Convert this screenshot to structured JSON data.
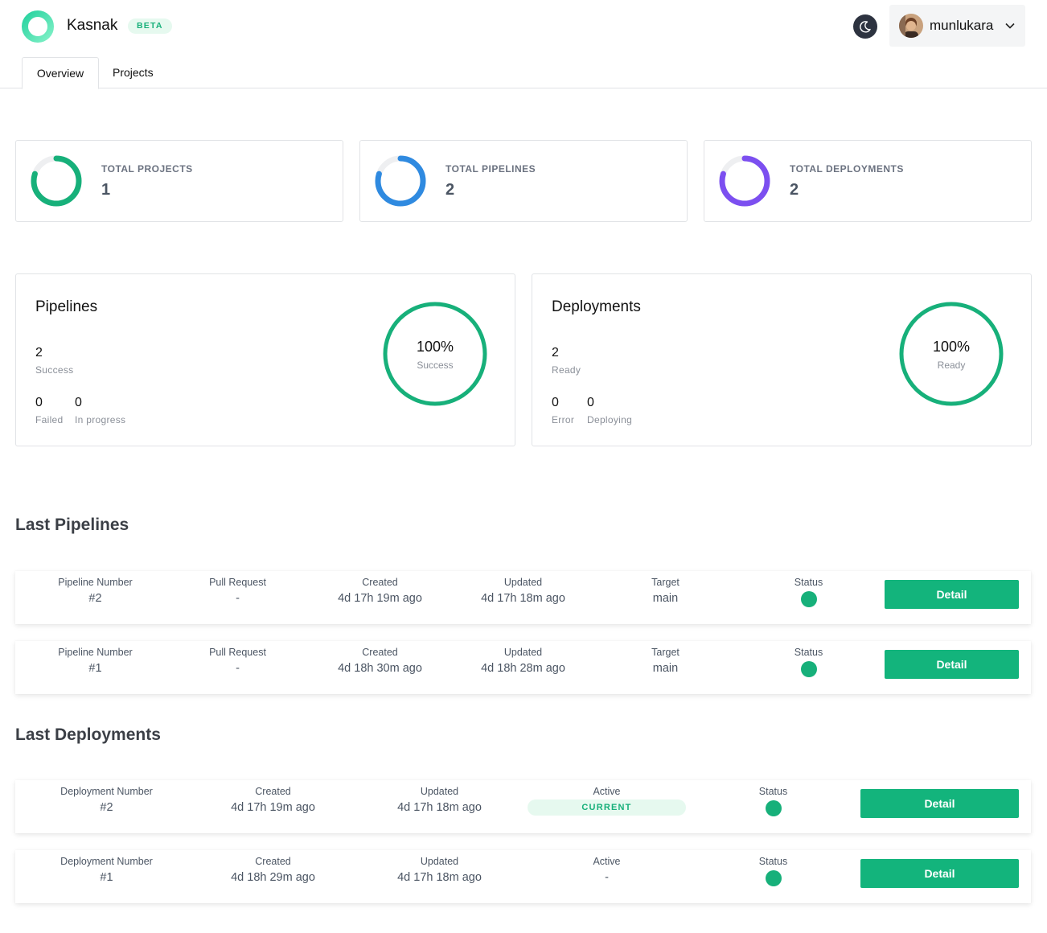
{
  "app": {
    "name": "Kasnak",
    "badge": "BETA"
  },
  "user": {
    "name": "munlukara"
  },
  "tabs": [
    {
      "label": "Overview",
      "active": true
    },
    {
      "label": "Projects",
      "active": false
    }
  ],
  "stats": [
    {
      "label": "TOTAL PROJECTS",
      "value": "1",
      "color": "#17b07a",
      "fill": 0.8
    },
    {
      "label": "TOTAL PIPELINES",
      "value": "2",
      "color": "#2f8ae0",
      "fill": 0.8
    },
    {
      "label": "TOTAL DEPLOYMENTS",
      "value": "2",
      "color": "#7c4ff0",
      "fill": 0.8
    }
  ],
  "summary": {
    "pipelines": {
      "title": "Pipelines",
      "primary": {
        "value": "2",
        "label": "Success"
      },
      "secondary": [
        {
          "value": "0",
          "label": "Failed"
        },
        {
          "value": "0",
          "label": "In progress"
        }
      ],
      "ring": {
        "percent": "100%",
        "label": "Success",
        "color": "#17b07a",
        "fill": 1.0
      }
    },
    "deployments": {
      "title": "Deployments",
      "primary": {
        "value": "2",
        "label": "Ready"
      },
      "secondary": [
        {
          "value": "0",
          "label": "Error"
        },
        {
          "value": "0",
          "label": "Deploying"
        }
      ],
      "ring": {
        "percent": "100%",
        "label": "Ready",
        "color": "#17b07a",
        "fill": 1.0
      }
    }
  },
  "last_pipelines": {
    "title": "Last Pipelines",
    "headers": {
      "number": "Pipeline Number",
      "pr": "Pull Request",
      "created": "Created",
      "updated": "Updated",
      "target": "Target",
      "status": "Status"
    },
    "detail_label": "Detail",
    "rows": [
      {
        "number": "#2",
        "pr": "-",
        "created": "4d 17h 19m ago",
        "updated": "4d 17h 18m ago",
        "target": "main",
        "status": "success"
      },
      {
        "number": "#1",
        "pr": "-",
        "created": "4d 18h 30m ago",
        "updated": "4d 18h 28m ago",
        "target": "main",
        "status": "success"
      }
    ]
  },
  "last_deployments": {
    "title": "Last Deployments",
    "headers": {
      "number": "Deployment Number",
      "created": "Created",
      "updated": "Updated",
      "active": "Active",
      "status": "Status"
    },
    "detail_label": "Detail",
    "rows": [
      {
        "number": "#2",
        "created": "4d 17h 19m ago",
        "updated": "4d 17h 18m ago",
        "active": "CURRENT",
        "status": "success"
      },
      {
        "number": "#1",
        "created": "4d 18h 29m ago",
        "updated": "4d 17h 18m ago",
        "active": "-",
        "status": "success"
      }
    ]
  },
  "colors": {
    "accent": "#13b47c",
    "success": "#17b07a"
  }
}
